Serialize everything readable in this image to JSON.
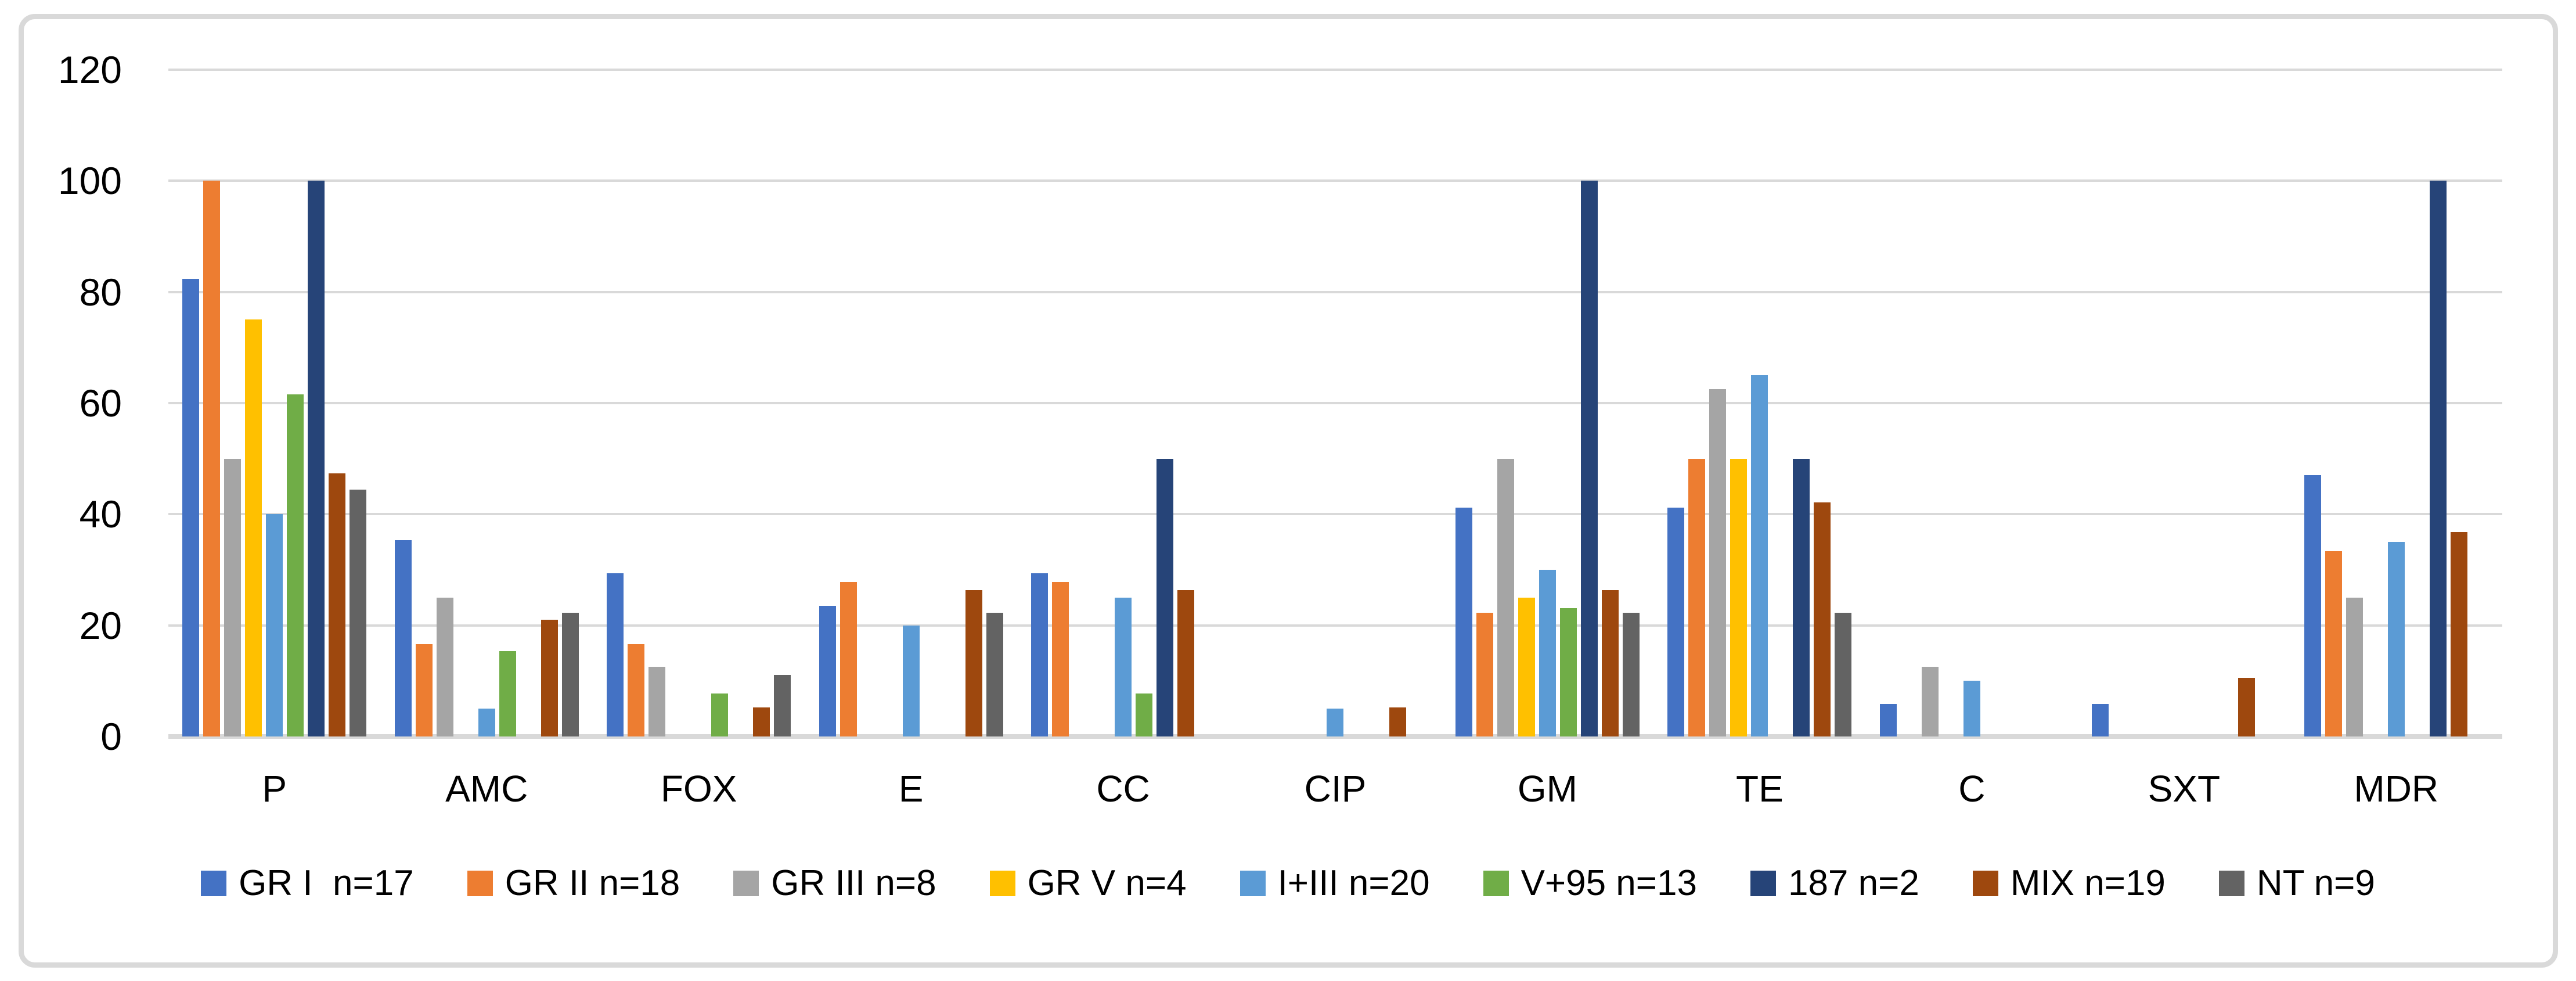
{
  "chart_data": {
    "type": "bar",
    "title": "",
    "xlabel": "",
    "ylabel": "",
    "categories": [
      "P",
      "AMC",
      "FOX",
      "E",
      "CC",
      "CIP",
      "GM",
      "TE",
      "C",
      "SXT",
      "MDR"
    ],
    "series": [
      {
        "name": "GR I  n=17",
        "color": "#4472C4",
        "values": [
          82.35,
          35.29,
          29.41,
          23.53,
          29.41,
          0,
          41.18,
          41.18,
          5.88,
          5.88,
          47.06
        ]
      },
      {
        "name": "GR II n=18",
        "color": "#ED7D31",
        "values": [
          100,
          16.67,
          16.67,
          27.78,
          27.78,
          0,
          22.22,
          50,
          0,
          0,
          33.33
        ]
      },
      {
        "name": "GR III n=8",
        "color": "#A5A5A5",
        "values": [
          50,
          25,
          12.5,
          0,
          0,
          0,
          50,
          62.5,
          12.5,
          0,
          25
        ]
      },
      {
        "name": "GR V n=4",
        "color": "#FFC000",
        "values": [
          75,
          0,
          0,
          0,
          0,
          0,
          25,
          50,
          0,
          0,
          0
        ]
      },
      {
        "name": "I+III n=20",
        "color": "#5B9BD5",
        "values": [
          40,
          5,
          0,
          20,
          25,
          5,
          30,
          65,
          10,
          0,
          35
        ]
      },
      {
        "name": "V+95 n=13",
        "color": "#70AD47",
        "values": [
          61.54,
          15.38,
          7.69,
          0,
          7.69,
          0,
          23.08,
          0,
          0,
          0,
          0
        ]
      },
      {
        "name": "187 n=2",
        "color": "#264478",
        "values": [
          100,
          0,
          0,
          0,
          50,
          0,
          100,
          50,
          0,
          0,
          100
        ]
      },
      {
        "name": "MIX n=19",
        "color": "#9E480E",
        "values": [
          47.37,
          21.05,
          5.26,
          26.32,
          26.32,
          5.26,
          26.32,
          42.11,
          0,
          10.53,
          36.84
        ]
      },
      {
        "name": "NT n=9",
        "color": "#636363",
        "values": [
          44.44,
          22.22,
          11.11,
          22.22,
          0,
          0,
          22.22,
          22.22,
          0,
          0,
          0
        ]
      }
    ],
    "ylim": [
      0,
      120
    ],
    "yticks": [
      0,
      20,
      40,
      60,
      80,
      100,
      120
    ],
    "grid": true,
    "legend_position": "bottom",
    "styles": {
      "background": "#FFFFFF",
      "grid_color": "#D9D9D9",
      "frame_border_color": "#D9D9D9",
      "axis_text_color": "#000000"
    }
  }
}
